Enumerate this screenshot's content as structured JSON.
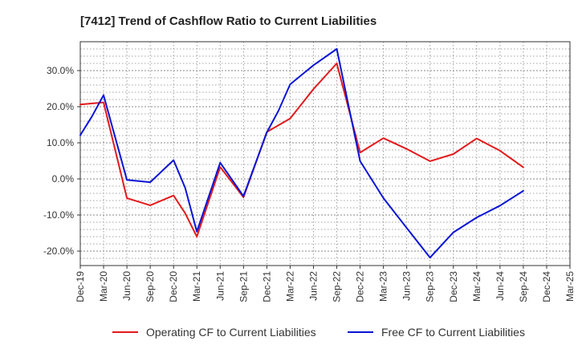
{
  "chart_data": {
    "type": "line",
    "title": "[7412]  Trend of Cashflow Ratio to Current Liabilities",
    "xlabel": "",
    "ylabel": "",
    "x": [
      "Dec-19",
      "Mar-20",
      "Jun-20",
      "Sep-20",
      "Dec-20",
      "Mar-21",
      "Jun-21",
      "Sep-21",
      "Dec-21",
      "Mar-22",
      "Jun-22",
      "Sep-22",
      "Dec-22",
      "Mar-23",
      "Jun-23",
      "Sep-23",
      "Dec-23",
      "Mar-24",
      "Jun-24",
      "Sep-24",
      "Dec-24",
      "Mar-25"
    ],
    "ylim": [
      -24,
      38
    ],
    "yticks": [
      -20,
      -10,
      0,
      10,
      20,
      30
    ],
    "ytick_labels": [
      "-20.0%",
      "-10.0%",
      "0.0%",
      "10.0%",
      "20.0%",
      "30.0%"
    ],
    "grid": true,
    "legend_position": "bottom",
    "series": [
      {
        "name": "Operating CF to Current Liabilities",
        "color": "#e31a1c",
        "points": [
          [
            0,
            20.6
          ],
          [
            1,
            21.2
          ],
          [
            2,
            -5.3
          ],
          [
            3,
            -7.3
          ],
          [
            4,
            -4.6
          ],
          [
            4.5,
            -9.5
          ],
          [
            5,
            -16.0
          ],
          [
            6,
            3.3
          ],
          [
            7,
            -5.1
          ],
          [
            8,
            13.0
          ],
          [
            9,
            16.7
          ],
          [
            10,
            24.9
          ],
          [
            11,
            32.0
          ],
          [
            12,
            7.3
          ],
          [
            13,
            11.3
          ],
          [
            14,
            8.3
          ],
          [
            15,
            4.9
          ],
          [
            16,
            6.9
          ],
          [
            17,
            11.2
          ],
          [
            18,
            7.8
          ],
          [
            19,
            3.2
          ]
        ]
      },
      {
        "name": "Free CF to Current Liabilities",
        "color": "#0a14d6",
        "points": [
          [
            0,
            12.1
          ],
          [
            0.5,
            17.3
          ],
          [
            1,
            23.2
          ],
          [
            2,
            -0.3
          ],
          [
            3,
            -0.9
          ],
          [
            4,
            5.2
          ],
          [
            4.5,
            -2.5
          ],
          [
            5,
            -14.6
          ],
          [
            6,
            4.5
          ],
          [
            7,
            -4.8
          ],
          [
            8,
            12.9
          ],
          [
            8.5,
            18.9
          ],
          [
            9,
            26.2
          ],
          [
            10,
            31.5
          ],
          [
            11,
            36.0
          ],
          [
            12,
            4.9
          ],
          [
            13,
            -5.3
          ],
          [
            14,
            -13.6
          ],
          [
            15,
            -21.8
          ],
          [
            16,
            -14.8
          ],
          [
            17,
            -10.7
          ],
          [
            18,
            -7.4
          ],
          [
            19,
            -3.3
          ]
        ]
      }
    ]
  }
}
